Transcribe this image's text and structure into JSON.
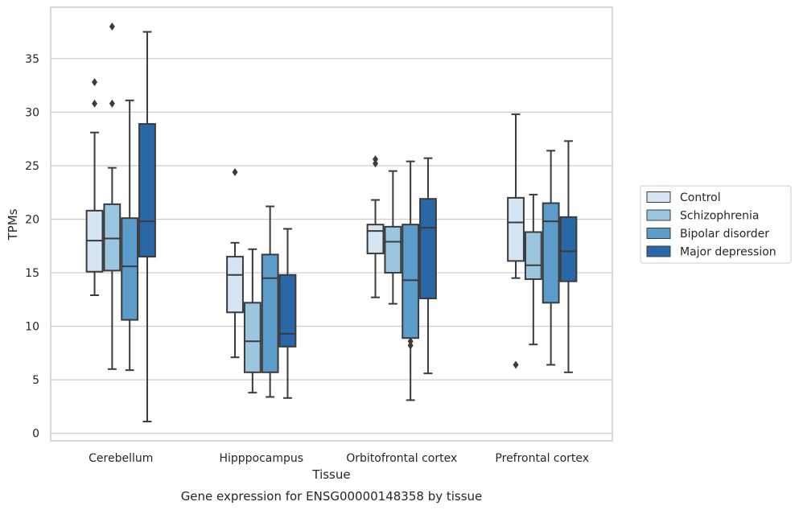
{
  "chart_data": {
    "type": "box",
    "title": "",
    "xlabel": "Tissue",
    "ylabel": "TPMs",
    "caption": "Gene expression for ENSG00000148358 by tissue",
    "ylim": [
      -0.7,
      39.8
    ],
    "yticks": [
      0,
      5,
      10,
      15,
      20,
      25,
      30,
      35
    ],
    "grid": "horizontal",
    "legend_position": "right",
    "categories": [
      "Cerebellum",
      "Hipppocampus",
      "Orbitofrontal cortex",
      "Prefrontal cortex"
    ],
    "series": [
      {
        "name": "Control",
        "color": "#d6e5f3",
        "boxes": [
          {
            "whislo": 12.9,
            "q1": 15.1,
            "med": 18.0,
            "q3": 20.8,
            "whishi": 28.1,
            "fliers": [
              30.8,
              32.8
            ]
          },
          {
            "whislo": 7.1,
            "q1": 11.3,
            "med": 14.8,
            "q3": 16.5,
            "whishi": 17.8,
            "fliers": [
              24.4
            ]
          },
          {
            "whislo": 12.7,
            "q1": 16.8,
            "med": 18.9,
            "q3": 19.5,
            "whishi": 21.8,
            "fliers": [
              25.2,
              25.6
            ]
          },
          {
            "whislo": 14.5,
            "q1": 16.1,
            "med": 19.7,
            "q3": 22.0,
            "whishi": 29.8,
            "fliers": [
              6.4
            ]
          }
        ]
      },
      {
        "name": "Schizophrenia",
        "color": "#9cc6e0",
        "boxes": [
          {
            "whislo": 6.0,
            "q1": 15.2,
            "med": 18.2,
            "q3": 21.4,
            "whishi": 24.8,
            "fliers": [
              30.8,
              38.0
            ]
          },
          {
            "whislo": 3.8,
            "q1": 5.7,
            "med": 8.6,
            "q3": 12.2,
            "whishi": 17.2,
            "fliers": []
          },
          {
            "whislo": 12.1,
            "q1": 15.0,
            "med": 17.9,
            "q3": 19.3,
            "whishi": 24.5,
            "fliers": []
          },
          {
            "whislo": 8.3,
            "q1": 14.4,
            "med": 15.7,
            "q3": 18.8,
            "whishi": 22.3,
            "fliers": []
          }
        ]
      },
      {
        "name": "Bipolar disorder",
        "color": "#5b9ccb",
        "boxes": [
          {
            "whislo": 5.9,
            "q1": 10.6,
            "med": 15.6,
            "q3": 20.1,
            "whishi": 31.1,
            "fliers": []
          },
          {
            "whislo": 3.4,
            "q1": 5.7,
            "med": 14.5,
            "q3": 16.7,
            "whishi": 21.2,
            "fliers": []
          },
          {
            "whislo": 3.1,
            "q1": 8.9,
            "med": 14.3,
            "q3": 19.5,
            "whishi": 25.4,
            "fliers": [
              8.2,
              8.6
            ]
          },
          {
            "whislo": 6.4,
            "q1": 12.2,
            "med": 19.8,
            "q3": 21.5,
            "whishi": 26.4,
            "fliers": []
          }
        ]
      },
      {
        "name": "Major depression",
        "color": "#2a67a7",
        "boxes": [
          {
            "whislo": 1.1,
            "q1": 16.5,
            "med": 19.8,
            "q3": 28.9,
            "whishi": 37.5,
            "fliers": []
          },
          {
            "whislo": 3.3,
            "q1": 8.1,
            "med": 9.3,
            "q3": 14.8,
            "whishi": 19.1,
            "fliers": []
          },
          {
            "whislo": 5.6,
            "q1": 12.6,
            "med": 19.2,
            "q3": 21.9,
            "whishi": 25.7,
            "fliers": []
          },
          {
            "whislo": 5.7,
            "q1": 14.2,
            "med": 17.0,
            "q3": 20.2,
            "whishi": 27.3,
            "fliers": []
          }
        ]
      }
    ]
  }
}
